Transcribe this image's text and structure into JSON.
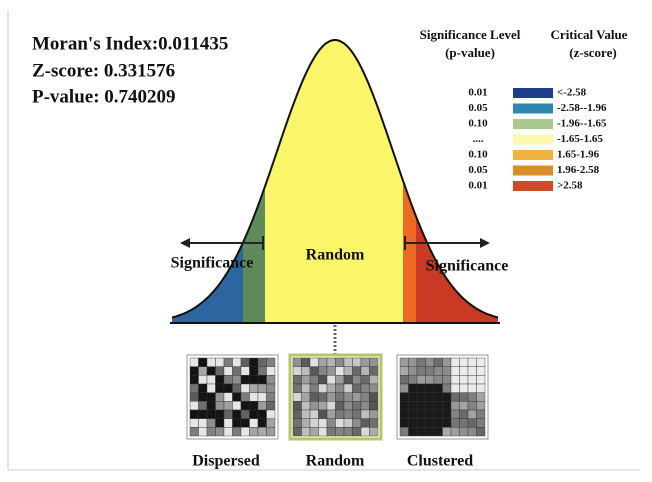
{
  "stats": [
    "Moran's Index:0.011435",
    "Z-score: 0.331576",
    "P-value: 0.740209"
  ],
  "legend": {
    "headers": {
      "p_title": "Significance Level",
      "p_unit": "(p-value)",
      "z_title": "Critical Value",
      "z_unit": "(z-score)"
    },
    "rows": [
      {
        "p": "0.01",
        "color": "#1c3f8c",
        "z": "<-2.58"
      },
      {
        "p": "0.05",
        "color": "#2f86b0",
        "z": "-2.58--1.96"
      },
      {
        "p": "0.10",
        "color": "#a9c98f",
        "z": "-1.96--1.65"
      },
      {
        "p": "....",
        "color": "#fbf7b0",
        "z": "-1.65-1.65"
      },
      {
        "p": "0.10",
        "color": "#f0b240",
        "z": "1.65-1.96"
      },
      {
        "p": "0.05",
        "color": "#d98e2a",
        "z": "1.96-2.58"
      },
      {
        "p": "0.01",
        "color": "#cf4a25",
        "z": ">2.58"
      }
    ]
  },
  "curve_labels": {
    "left": "Significance",
    "center": "Random",
    "right": "Significance"
  },
  "panels": [
    "Dispersed",
    "Random",
    "Clustered"
  ]
}
